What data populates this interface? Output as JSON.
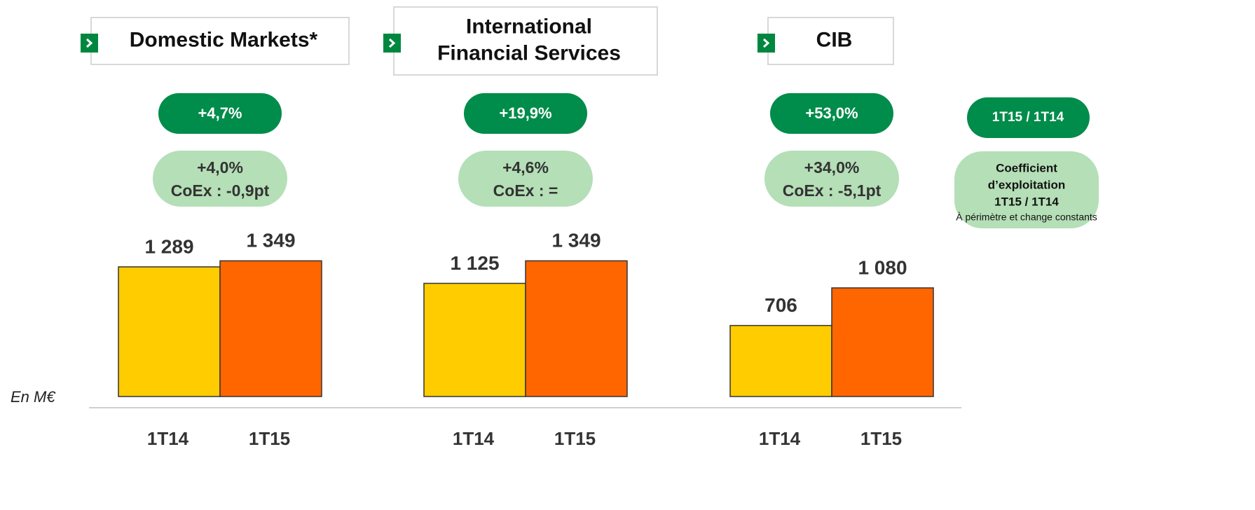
{
  "unit": "En M€",
  "legend": {
    "growth": "1T15 / 1T14",
    "coex_lines": [
      "Coefficient",
      "d’exploitation",
      "1T15 / 1T14"
    ],
    "note": "À périmètre et change constants"
  },
  "chart_data": [
    {
      "type": "bar",
      "title_lines": [
        "Domestic Markets*"
      ],
      "growth": "+4,7%",
      "constant_growth": "+4,0%",
      "coex": "CoEx : -0,9pt",
      "categories": [
        "1T14",
        "1T15"
      ],
      "values": [
        1289,
        1349
      ],
      "value_labels": [
        "1 289",
        "1 349"
      ],
      "colors": [
        "#FFCC00",
        "#FF6600"
      ],
      "ylim": [
        0,
        1400
      ]
    },
    {
      "type": "bar",
      "title_lines": [
        "International",
        "Financial Services"
      ],
      "growth": "+19,9%",
      "constant_growth": "+4,6%",
      "coex": "CoEx : =",
      "categories": [
        "1T14",
        "1T15"
      ],
      "values": [
        1125,
        1349
      ],
      "value_labels": [
        "1 125",
        "1 349"
      ],
      "colors": [
        "#FFCC00",
        "#FF6600"
      ],
      "ylim": [
        0,
        1400
      ]
    },
    {
      "type": "bar",
      "title_lines": [
        "CIB"
      ],
      "growth": "+53,0%",
      "constant_growth": "+34,0%",
      "coex": "CoEx : -5,1pt",
      "categories": [
        "1T14",
        "1T15"
      ],
      "values": [
        706,
        1080
      ],
      "value_labels": [
        "706",
        "1 080"
      ],
      "colors": [
        "#FFCC00",
        "#FF6600"
      ],
      "ylim": [
        0,
        1400
      ]
    }
  ]
}
